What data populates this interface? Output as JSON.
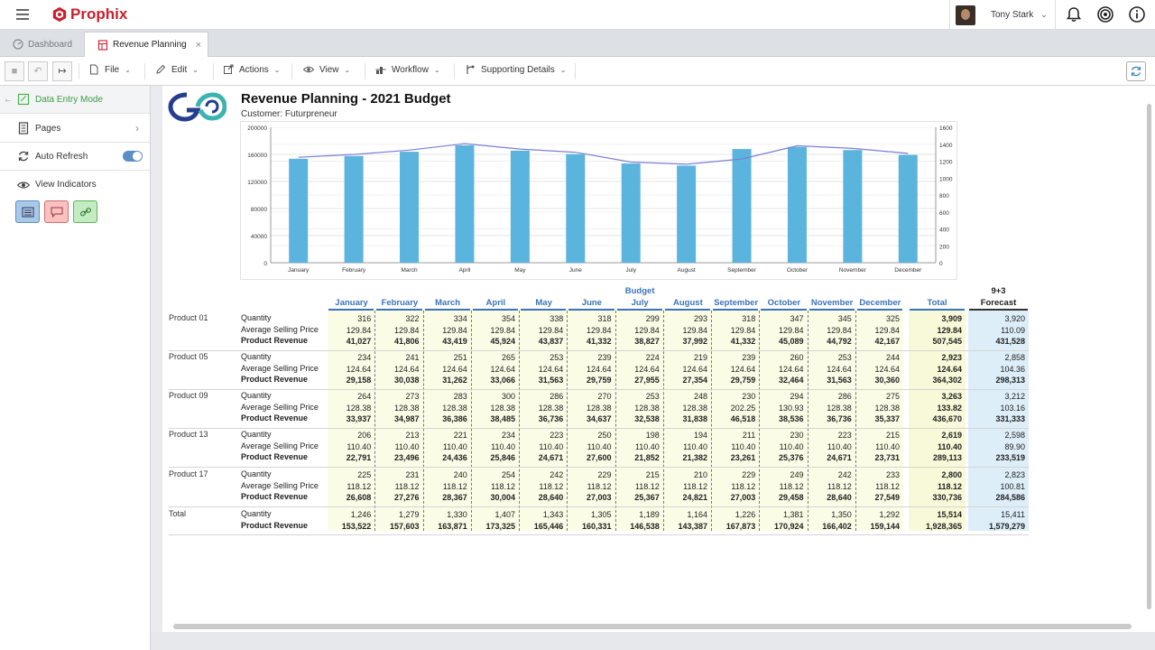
{
  "app": {
    "brand": "Prophix",
    "brand_color": "#c8202e",
    "user_name": "Tony Stark"
  },
  "tabs": [
    {
      "label": "Dashboard"
    },
    {
      "label": "Revenue Planning"
    }
  ],
  "toolbar": {
    "file": "File",
    "edit": "Edit",
    "actions": "Actions",
    "view": "View",
    "workflow": "Workflow",
    "supporting": "Supporting Details"
  },
  "sidebar": {
    "mode": "Data Entry Mode",
    "pages": "Pages",
    "auto_refresh": "Auto Refresh",
    "auto_refresh_on": true,
    "view_indicators": "View Indicators"
  },
  "report": {
    "title": "Revenue Planning - 2021 Budget",
    "subtitle": "Customer: Futurpreneur"
  },
  "chart_data": {
    "type": "bar",
    "categories": [
      "January",
      "February",
      "March",
      "April",
      "May",
      "June",
      "July",
      "August",
      "September",
      "October",
      "November",
      "December"
    ],
    "series": [
      {
        "kind": "bar",
        "axis": "left",
        "values": [
          153522,
          157603,
          163871,
          173325,
          165446,
          160331,
          146538,
          143387,
          167873,
          170924,
          166402,
          159144
        ],
        "color": "#5ab4dd"
      },
      {
        "kind": "line",
        "axis": "right",
        "values": [
          1246,
          1279,
          1330,
          1407,
          1343,
          1305,
          1189,
          1164,
          1226,
          1381,
          1350,
          1292
        ],
        "color": "#7b7fd4"
      }
    ],
    "left_ticks": [
      "200000",
      "160000",
      "120000",
      "80000",
      "40000",
      "0"
    ],
    "right_ticks": [
      "1600",
      "1400",
      "1200",
      "1000",
      "800",
      "600",
      "400",
      "200",
      "0"
    ],
    "ylim_left": [
      0,
      200000
    ],
    "ylim_right": [
      0,
      1600
    ],
    "grid": true
  },
  "grid": {
    "budget_label": "Budget",
    "forecast_top": "9+3",
    "forecast_label": "Forecast",
    "total_label": "Total",
    "months": [
      "January",
      "February",
      "March",
      "April",
      "May",
      "June",
      "July",
      "August",
      "September",
      "October",
      "November",
      "December"
    ],
    "metric_labels": {
      "qty": "Quantity",
      "asp": "Average Selling Price",
      "rev": "Product Revenue"
    },
    "products": [
      {
        "name": "Product 01",
        "qty": [
          "316",
          "322",
          "334",
          "354",
          "338",
          "318",
          "299",
          "293",
          "318",
          "347",
          "345",
          "325"
        ],
        "qty_total": "3,909",
        "qty_fc": "3,920",
        "asp": [
          "129.84",
          "129.84",
          "129.84",
          "129.84",
          "129.84",
          "129.84",
          "129.84",
          "129.84",
          "129.84",
          "129.84",
          "129.84",
          "129.84"
        ],
        "asp_total": "129.84",
        "asp_fc": "110.09",
        "rev": [
          "41,027",
          "41,806",
          "43,419",
          "45,924",
          "43,837",
          "41,332",
          "38,827",
          "37,992",
          "41,332",
          "45,089",
          "44,792",
          "42,167"
        ],
        "rev_total": "507,545",
        "rev_fc": "431,528"
      },
      {
        "name": "Product 05",
        "qty": [
          "234",
          "241",
          "251",
          "265",
          "253",
          "239",
          "224",
          "219",
          "239",
          "260",
          "253",
          "244"
        ],
        "qty_total": "2,923",
        "qty_fc": "2,858",
        "asp": [
          "124.64",
          "124.64",
          "124.64",
          "124.64",
          "124.64",
          "124.64",
          "124.64",
          "124.64",
          "124.64",
          "124.64",
          "124.64",
          "124.64"
        ],
        "asp_total": "124.64",
        "asp_fc": "104.36",
        "rev": [
          "29,158",
          "30,038",
          "31,262",
          "33,066",
          "31,563",
          "29,759",
          "27,955",
          "27,354",
          "29,759",
          "32,464",
          "31,563",
          "30,360"
        ],
        "rev_total": "364,302",
        "rev_fc": "298,313"
      },
      {
        "name": "Product 09",
        "qty": [
          "264",
          "273",
          "283",
          "300",
          "286",
          "270",
          "253",
          "248",
          "230",
          "294",
          "286",
          "275"
        ],
        "qty_total": "3,263",
        "qty_fc": "3,212",
        "asp": [
          "128.38",
          "128.38",
          "128.38",
          "128.38",
          "128.38",
          "128.38",
          "128.38",
          "128.38",
          "202.25",
          "130.93",
          "128.38",
          "128.38"
        ],
        "asp_total": "133.82",
        "asp_fc": "103.16",
        "rev": [
          "33,937",
          "34,987",
          "36,386",
          "38,485",
          "36,736",
          "34,637",
          "32,538",
          "31,838",
          "46,518",
          "38,536",
          "36,736",
          "35,337"
        ],
        "rev_total": "436,670",
        "rev_fc": "331,333"
      },
      {
        "name": "Product 13",
        "qty": [
          "206",
          "213",
          "221",
          "234",
          "223",
          "250",
          "198",
          "194",
          "211",
          "230",
          "223",
          "215"
        ],
        "qty_total": "2,619",
        "qty_fc": "2,598",
        "asp": [
          "110.40",
          "110.40",
          "110.40",
          "110.40",
          "110.40",
          "110.40",
          "110.40",
          "110.40",
          "110.40",
          "110.40",
          "110.40",
          "110.40"
        ],
        "asp_total": "110.40",
        "asp_fc": "89.90",
        "rev": [
          "22,791",
          "23,496",
          "24,436",
          "25,846",
          "24,671",
          "27,600",
          "21,852",
          "21,382",
          "23,261",
          "25,376",
          "24,671",
          "23,731"
        ],
        "rev_total": "289,113",
        "rev_fc": "233,519"
      },
      {
        "name": "Product 17",
        "qty": [
          "225",
          "231",
          "240",
          "254",
          "242",
          "229",
          "215",
          "210",
          "229",
          "249",
          "242",
          "233"
        ],
        "qty_total": "2,800",
        "qty_fc": "2,823",
        "asp": [
          "118.12",
          "118.12",
          "118.12",
          "118.12",
          "118.12",
          "118.12",
          "118.12",
          "118.12",
          "118.12",
          "118.12",
          "118.12",
          "118.12"
        ],
        "asp_total": "118.12",
        "asp_fc": "100.81",
        "rev": [
          "26,608",
          "27,276",
          "28,367",
          "30,004",
          "28,640",
          "27,003",
          "25,367",
          "24,821",
          "27,003",
          "29,458",
          "28,640",
          "27,549"
        ],
        "rev_total": "330,736",
        "rev_fc": "284,586"
      }
    ],
    "totals": {
      "name": "Total",
      "qty": [
        "1,246",
        "1,279",
        "1,330",
        "1,407",
        "1,343",
        "1,305",
        "1,189",
        "1,164",
        "1,226",
        "1,381",
        "1,350",
        "1,292"
      ],
      "qty_total": "15,514",
      "qty_fc": "15,411",
      "rev": [
        "153,522",
        "157,603",
        "163,871",
        "173,325",
        "165,446",
        "160,331",
        "146,538",
        "143,387",
        "167,873",
        "170,924",
        "166,402",
        "159,144"
      ],
      "rev_total": "1,928,365",
      "rev_fc": "1,579,279"
    }
  }
}
